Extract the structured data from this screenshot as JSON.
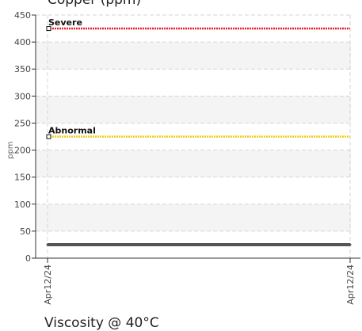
{
  "chart_data": {
    "type": "line",
    "title": "Copper (ppm)",
    "ylabel": "ppm",
    "xlabel": "",
    "ylim": [
      0,
      450
    ],
    "yticks": [
      0,
      50,
      100,
      150,
      200,
      250,
      300,
      350,
      400,
      450
    ],
    "x_tick_labels": [
      "Apr12/24",
      "Apr12/24"
    ],
    "grid": true,
    "thresholds": [
      {
        "name": "Severe",
        "value": 425,
        "color": "#e8202a"
      },
      {
        "name": "Abnormal",
        "value": 225,
        "color": "#f2cc10"
      }
    ],
    "series": [
      {
        "x": [
          "Apr12/24",
          "Apr12/24"
        ],
        "values": [
          25,
          25
        ],
        "color": "#555555"
      }
    ]
  },
  "next_chart_title": "Viscosity @ 40°C"
}
